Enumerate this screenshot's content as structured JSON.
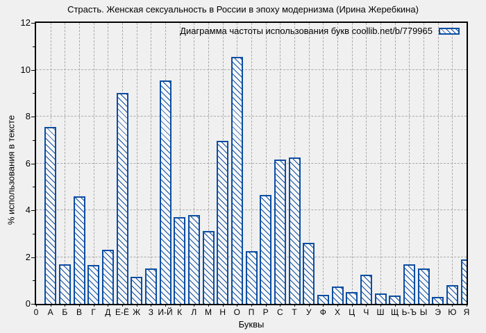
{
  "title": "Страсть. Женская сексуальность в России в эпоху модернизма (Ирина Жеребкина)",
  "legend": {
    "label": "Диаграмма частоты использования букв coollib.net/b/779965",
    "swatch": "hatched-bar-swatch"
  },
  "axes": {
    "ylabel": "% использования в тексте",
    "xlabel": "Буквы",
    "origin_label": "0"
  },
  "colors": {
    "bar": "#0b4da2",
    "grid": "#a9a9a9",
    "frame": "#000000",
    "background": "#f0f0f0"
  },
  "chart_data": {
    "type": "bar",
    "title": "Страсть. Женская сексуальность в России в эпоху модернизма (Ирина Жеребкина)",
    "legend_entry": "Диаграмма частоты использования букв coollib.net/b/779965",
    "xlabel": "Буквы",
    "ylabel": "% использования в тексте",
    "ylim": [
      0,
      12
    ],
    "yticks": [
      0,
      2,
      4,
      6,
      8,
      10,
      12
    ],
    "grid": true,
    "hatch": "diagonal",
    "categories": [
      "А",
      "Б",
      "В",
      "Г",
      "Д",
      "Е-Ё",
      "Ж",
      "З",
      "И-Й",
      "К",
      "Л",
      "М",
      "Н",
      "О",
      "П",
      "Р",
      "С",
      "Т",
      "У",
      "Ф",
      "Х",
      "Ц",
      "Ч",
      "Ш",
      "Щ",
      "Ь-Ъ",
      "Ы",
      "Э",
      "Ю",
      "Я"
    ],
    "values": [
      7.55,
      1.7,
      4.6,
      1.65,
      2.3,
      9.0,
      1.15,
      1.5,
      9.55,
      3.7,
      3.8,
      3.1,
      6.95,
      10.55,
      2.25,
      4.65,
      6.15,
      6.25,
      2.6,
      0.4,
      0.75,
      0.5,
      1.25,
      0.45,
      0.35,
      1.7,
      1.5,
      0.3,
      0.8,
      1.9
    ]
  }
}
